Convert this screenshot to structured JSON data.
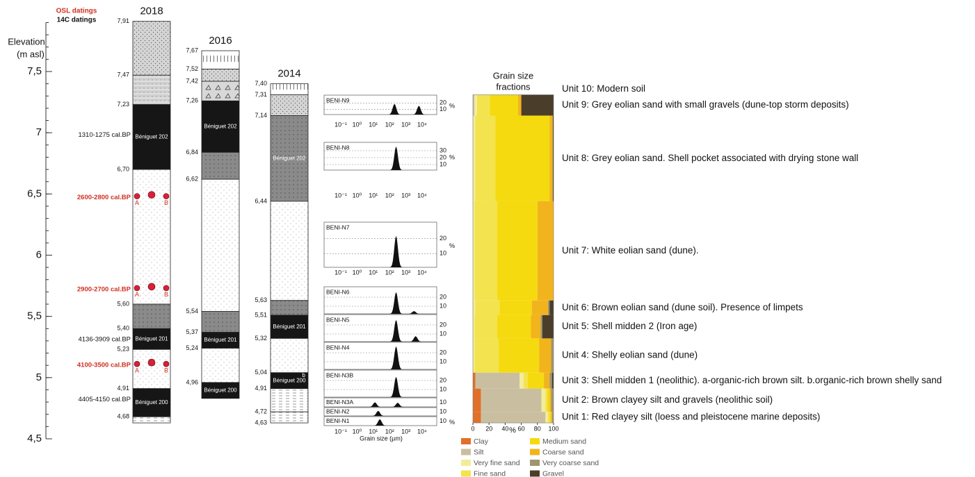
{
  "elevation_axis": {
    "title": "Elevation",
    "unit": "(m asl)",
    "range": [
      4.5,
      7.9
    ],
    "ticks": [
      {
        "value": 7.5,
        "label": "7,5"
      },
      {
        "value": 7,
        "label": "7"
      },
      {
        "value": 6.5,
        "label": "6,5"
      },
      {
        "value": 6,
        "label": "6"
      },
      {
        "value": 5.5,
        "label": "5,5"
      },
      {
        "value": 5,
        "label": "5"
      },
      {
        "value": 4.5,
        "label": "4,5"
      }
    ]
  },
  "dating_legend": {
    "osl": "OSL datings",
    "c14": "14C datings"
  },
  "logs": [
    {
      "year": "2018",
      "base": 4.63,
      "layers": [
        {
          "top": {
            "value": 7.91,
            "label": "7,91"
          },
          "fill": "stipple"
        },
        {
          "top": {
            "value": 7.47,
            "label": "7,47"
          },
          "fill": "banded"
        },
        {
          "top": {
            "value": 7.23,
            "label": "7,23"
          },
          "fill": "black",
          "name": "Béniguet 202"
        },
        {
          "top": {
            "value": 6.7,
            "label": "6,70"
          },
          "fill": "white"
        },
        {
          "top": {
            "value": 5.6,
            "label": "5,60"
          },
          "fill": "dark"
        },
        {
          "top": {
            "value": 5.4,
            "label": "5,40"
          },
          "fill": "black",
          "name": "Béniguet 201"
        },
        {
          "top": {
            "value": 5.23,
            "label": "5,23"
          },
          "fill": "white"
        },
        {
          "top": {
            "value": 4.91,
            "label": "4,91"
          },
          "fill": "black",
          "name": "Béniguet 200"
        },
        {
          "top": {
            "value": 4.68,
            "label": "4,68"
          },
          "fill": "laminated"
        }
      ],
      "datings": [
        {
          "label": "1310-1275 cal.BP",
          "kind": "c14",
          "elevation": 6.98
        },
        {
          "label": "2600-2800 cal.BP",
          "kind": "osl",
          "elevation": 6.47,
          "samples": [
            "A",
            "B"
          ]
        },
        {
          "label": "2900-2700 cal.BP",
          "kind": "osl",
          "elevation": 5.72,
          "samples": [
            "A",
            "B"
          ]
        },
        {
          "label": "4136-3909 cal.BP",
          "kind": "c14",
          "elevation": 5.31
        },
        {
          "label": "4100-3500 cal.BP",
          "kind": "osl",
          "elevation": 5.1,
          "samples": [
            "A",
            "B"
          ]
        },
        {
          "label": "4405-4150 cal.BP",
          "kind": "c14",
          "elevation": 4.82
        }
      ]
    },
    {
      "year": "2016",
      "base": 4.83,
      "layers": [
        {
          "top": {
            "value": 7.67,
            "label": "7,67"
          },
          "fill": "soil"
        },
        {
          "top": {
            "value": 7.52,
            "label": "7,52"
          },
          "fill": "stipple"
        },
        {
          "top": {
            "value": 7.42,
            "label": "7,42"
          },
          "fill": "gravel"
        },
        {
          "top": {
            "value": 7.26,
            "label": "7,26"
          },
          "fill": "black",
          "name": "Béniguet 202"
        },
        {
          "top": {
            "value": 6.84,
            "label": "6,84"
          },
          "fill": "dark"
        },
        {
          "top": {
            "value": 6.62,
            "label": "6,62"
          },
          "fill": "white"
        },
        {
          "top": {
            "value": 5.54,
            "label": "5,54"
          },
          "fill": "dark"
        },
        {
          "top": {
            "value": 5.37,
            "label": "5,37"
          },
          "fill": "black",
          "name": "Béniguet 201"
        },
        {
          "top": {
            "value": 5.24,
            "label": "5,24"
          },
          "fill": "white"
        },
        {
          "top": {
            "value": 4.96,
            "label": "4,96"
          },
          "fill": "black",
          "name": "Béniguet 200"
        }
      ]
    },
    {
      "year": "2014",
      "base": 4.63,
      "layers": [
        {
          "top": {
            "value": 7.4,
            "label": "7,40"
          },
          "fill": "soil"
        },
        {
          "top": {
            "value": 7.31,
            "label": "7,31"
          },
          "fill": "stipple"
        },
        {
          "top": {
            "value": 7.14,
            "label": "7,14"
          },
          "fill": "dark",
          "name": "Béniguet 202"
        },
        {
          "top": {
            "value": 6.44,
            "label": "6,44"
          },
          "fill": "white"
        },
        {
          "top": {
            "value": 5.63,
            "label": "5,63"
          },
          "fill": "dark"
        },
        {
          "top": {
            "value": 5.51,
            "label": "5,51"
          },
          "fill": "black",
          "name": "Béniguet 201"
        },
        {
          "top": {
            "value": 5.32,
            "label": "5,32"
          },
          "fill": "white"
        },
        {
          "top": {
            "value": 5.04,
            "label": "5,04"
          },
          "fill": "black",
          "name": "Béniguet 200",
          "marks": [
            "b",
            "a"
          ]
        },
        {
          "top": {
            "value": 4.91,
            "label": "4,91"
          },
          "fill": "laminated"
        },
        {
          "top": {
            "value": 4.72,
            "label": "4,72"
          },
          "fill": "laminated"
        },
        {
          "top": {
            "value": 4.63,
            "label": "4,63"
          },
          "fill": "laminated"
        }
      ]
    }
  ],
  "grain_size": {
    "xlabel": "Grain size (µm)",
    "unit": "%",
    "xtick_labels": [
      "10⁻¹",
      "10⁰",
      "10¹",
      "10²",
      "10³",
      "10⁴"
    ],
    "samples": [
      {
        "name": "BENI-N9",
        "yticks": [
          "20",
          "10"
        ],
        "peaks": [
          [
            2.3,
            0.55
          ],
          [
            3.8,
            0.45
          ]
        ]
      },
      {
        "name": "BENI-N8",
        "yticks": [
          "30",
          "20",
          "10"
        ],
        "peaks": [
          [
            2.4,
            0.85
          ]
        ]
      },
      {
        "name": "BENI-N7",
        "yticks": [
          "20",
          "10"
        ],
        "peaks": [
          [
            2.4,
            0.7
          ]
        ]
      },
      {
        "name": "BENI-N6",
        "yticks": [
          "20",
          "10"
        ],
        "peaks": [
          [
            2.4,
            0.8
          ],
          [
            3.5,
            0.1
          ]
        ]
      },
      {
        "name": "BENI-N5",
        "yticks": [
          "20",
          "10"
        ],
        "peaks": [
          [
            2.4,
            0.8
          ],
          [
            3.6,
            0.2
          ]
        ]
      },
      {
        "name": "BENI-N4",
        "yticks": [
          "20",
          "10"
        ],
        "peaks": [
          [
            2.4,
            0.85
          ]
        ]
      },
      {
        "name": "BENI-N3B",
        "yticks": [
          "20",
          "10"
        ],
        "peaks": [
          [
            2.4,
            0.75
          ]
        ]
      },
      {
        "name": "BENI-N3A",
        "yticks": [
          "10"
        ],
        "peaks": [
          [
            1.1,
            0.5
          ],
          [
            2.5,
            0.45
          ]
        ]
      },
      {
        "name": "BENI-N2",
        "yticks": [
          "10"
        ],
        "peaks": [
          [
            1.3,
            0.6
          ]
        ]
      },
      {
        "name": "BENI-N1",
        "yticks": [
          "10"
        ],
        "peaks": [
          [
            1.4,
            0.7
          ]
        ]
      }
    ]
  },
  "fractions": {
    "title": [
      "Grain size",
      "fractions"
    ],
    "xlabel": "%",
    "xlim": [
      0,
      100
    ],
    "xticks": [
      0,
      20,
      40,
      60,
      80,
      100
    ],
    "classes": [
      {
        "name": "Clay",
        "color": "#e0702a"
      },
      {
        "name": "Silt",
        "color": "#c9bfa0"
      },
      {
        "name": "Very fine sand",
        "color": "#f3ec9a"
      },
      {
        "name": "Fine sand",
        "color": "#f3e34e"
      },
      {
        "name": "Medium sand",
        "color": "#f5da10"
      },
      {
        "name": "Coarse sand",
        "color": "#f2b41c"
      },
      {
        "name": "Very coarse sand",
        "color": "#a09570"
      },
      {
        "name": "Gravel",
        "color": "#4a3e2a"
      }
    ],
    "units": [
      {
        "label": "Unit 10: Modern soil",
        "top": 7.4,
        "bottom": 7.31
      },
      {
        "label": "Unit 9: Grey eolian sand with small gravels (dune-top storm deposits)",
        "top": 7.31,
        "bottom": 7.14,
        "values": [
          0,
          2,
          3,
          16,
          35,
          4,
          0,
          40
        ]
      },
      {
        "label": "Unit 8: Grey eolian sand. Shell pocket associated with drying stone wall",
        "top": 7.14,
        "bottom": 6.44,
        "values": [
          0,
          0,
          3,
          25,
          67,
          4,
          0,
          1
        ]
      },
      {
        "label": "Unit 7: White eolian sand (dune).",
        "top": 6.44,
        "bottom": 5.63,
        "values": [
          0,
          0,
          2,
          28,
          50,
          20,
          0,
          0
        ]
      },
      {
        "label": "Unit 6: Brown eolian sand (dune soil). Presence of limpets",
        "top": 5.63,
        "bottom": 5.51,
        "values": [
          0,
          0,
          3,
          30,
          40,
          20,
          2,
          5
        ]
      },
      {
        "label": "Unit 5: Shell midden 2 (Iron age)",
        "top": 5.51,
        "bottom": 5.32,
        "values": [
          0,
          0,
          2,
          28,
          42,
          12,
          2,
          14
        ]
      },
      {
        "label": "Unit 4: Shelly eolian sand (dune)",
        "top": 5.32,
        "bottom": 5.04,
        "values": [
          0,
          0,
          2,
          30,
          50,
          15,
          3,
          0
        ]
      },
      {
        "label": "Unit 3: Shell midden 1 (neolithic). a-organic-rich brown silt. b.organic-rich brown shelly sand",
        "top": 5.04,
        "bottom": 4.91,
        "values": [
          3,
          55,
          5,
          5,
          20,
          7,
          3,
          2
        ]
      },
      {
        "label": "Unit 2: Brown clayey silt and gravels (neolithic soil)",
        "top": 4.91,
        "bottom": 4.72,
        "values": [
          10,
          75,
          5,
          2,
          3,
          2,
          3,
          0
        ]
      },
      {
        "label": "Unit 1: Red clayey silt (loess and pleistocene marine deposits)",
        "top": 4.72,
        "bottom": 4.63,
        "values": [
          10,
          80,
          3,
          2,
          2,
          1,
          2,
          0
        ]
      }
    ]
  }
}
